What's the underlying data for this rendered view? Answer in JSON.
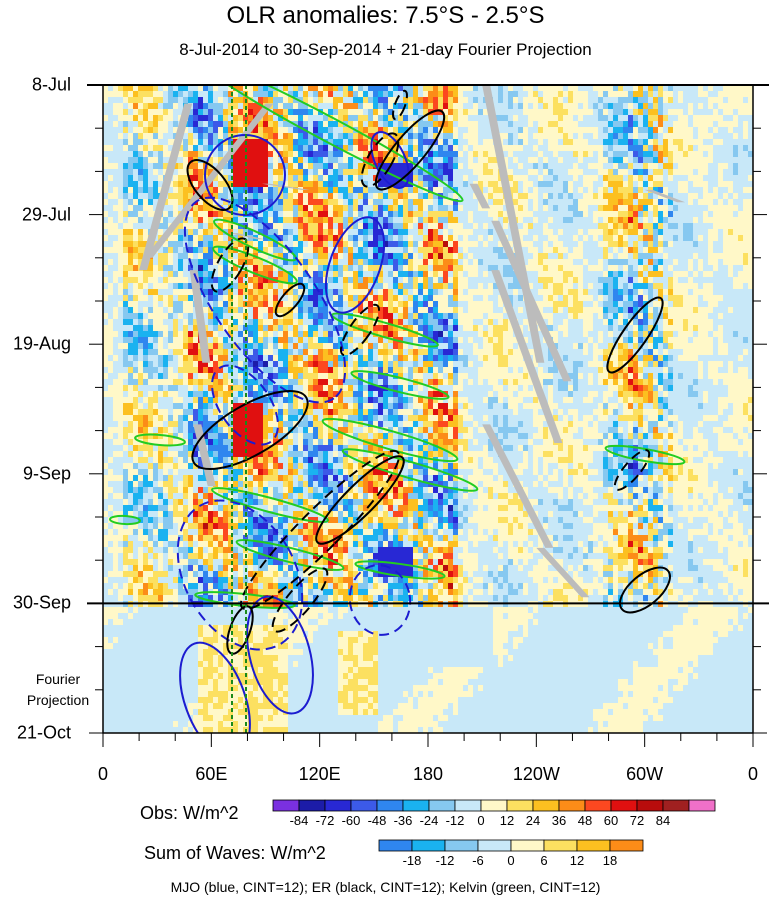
{
  "chart_data": {
    "type": "heatmap",
    "title": "OLR anomalies: 7.5°S - 2.5°S",
    "subtitle": "8-Jul-2014 to 30-Sep-2014 + 21-day Fourier Projection",
    "x_tick_labels": [
      "0",
      "60E",
      "120E",
      "180",
      "120W",
      "60W",
      "0"
    ],
    "x_tick_values_deg_east": [
      0,
      60,
      120,
      180,
      240,
      300,
      360
    ],
    "y_tick_labels": [
      "8-Jul",
      "29-Jul",
      "19-Aug",
      "9-Sep",
      "30-Sep",
      "21-Oct"
    ],
    "y_tick_values": [
      "2014-07-08",
      "2014-07-29",
      "2014-08-19",
      "2014-09-09",
      "2014-09-30",
      "2014-10-21"
    ],
    "y_reversed": true,
    "observed_end": "2014-09-30",
    "projection_label": "Fourier Projection",
    "obs_colorbar": {
      "title": "Obs: W/m^2",
      "levels": [
        -84,
        -72,
        -60,
        -48,
        -36,
        -24,
        -12,
        0,
        12,
        24,
        36,
        48,
        60,
        72,
        84
      ],
      "colors": [
        "#7a30e0",
        "#1c1ca8",
        "#2828d4",
        "#3c5ae8",
        "#2f86ef",
        "#1ab2f0",
        "#86c8f0",
        "#c8e8f8",
        "#fff8c8",
        "#fce060",
        "#fcc020",
        "#fc8c18",
        "#fc4820",
        "#e01010",
        "#b80c0c",
        "#a02020",
        "#f070c8"
      ]
    },
    "waves_colorbar": {
      "title": "Sum of Waves: W/m^2",
      "levels": [
        -18,
        -12,
        -6,
        0,
        6,
        12,
        18
      ],
      "colors": [
        "#2f86ef",
        "#1ab2f0",
        "#86c8f0",
        "#c8e8f8",
        "#fff8c8",
        "#fce060",
        "#fcc020",
        "#fc8c18"
      ]
    },
    "series": [
      {
        "name": "MJO",
        "color": "#1c1cd0"
      },
      {
        "name": "ER",
        "color": "#000000"
      },
      {
        "name": "Kelvin",
        "color": "#22cc22"
      }
    ],
    "caption": "MJO (blue, CINT=12); ER (black, CINT=12); Kelvin (green, CINT=12)"
  }
}
